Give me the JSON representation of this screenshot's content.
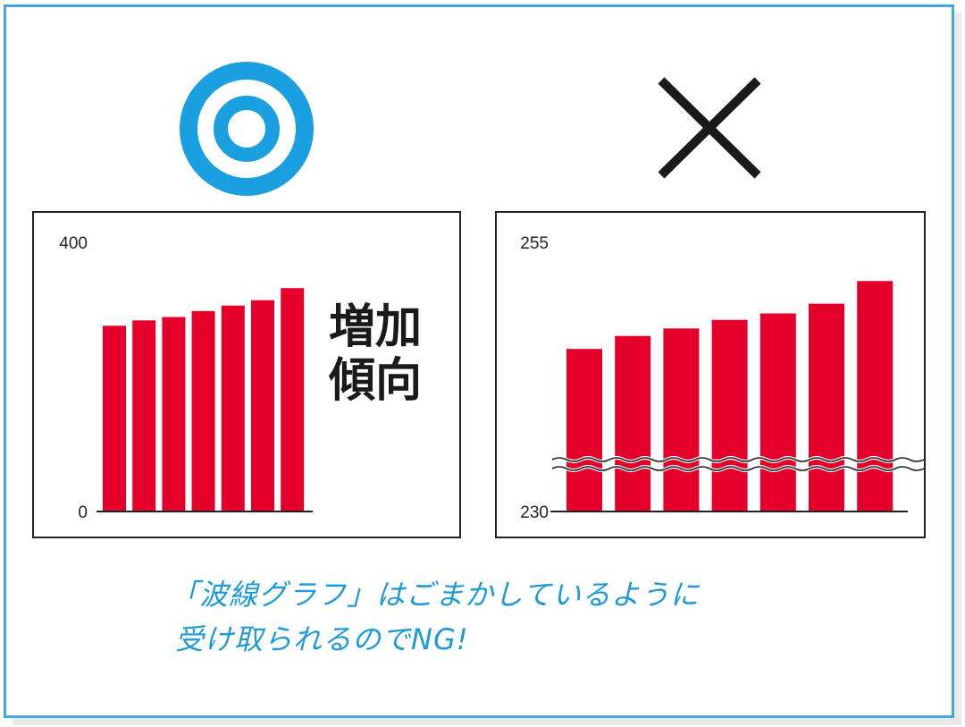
{
  "symbols": {
    "good": {
      "name": "double-circle-icon",
      "color": "#1aa0e0"
    },
    "bad": {
      "name": "cross-icon",
      "color": "#1a1a1a"
    }
  },
  "colors": {
    "bar": "#e4002b",
    "border": "#3fa9e0",
    "caption": "#1f9ad8"
  },
  "good_chart_text": {
    "line1": "増加",
    "line2": "傾向"
  },
  "caption": {
    "line1": "「波線グラフ」はごまかしているように",
    "line2": "受け取られるのでNG!"
  },
  "chart_data": [
    {
      "type": "bar",
      "ylim": [
        0,
        400
      ],
      "yticks": [
        {
          "value": 0,
          "label": "0"
        },
        {
          "value": 400,
          "label": "400"
        }
      ],
      "values": [
        276,
        284,
        289,
        298,
        306,
        314,
        332
      ],
      "axis_break": false
    },
    {
      "type": "bar",
      "ylim": [
        230,
        255
      ],
      "yticks": [
        {
          "value": 230,
          "label": "230"
        },
        {
          "value": 255,
          "label": "255"
        }
      ],
      "values": [
        245.1,
        246.3,
        247.0,
        247.8,
        248.4,
        249.3,
        251.4
      ],
      "axis_break": true
    }
  ]
}
